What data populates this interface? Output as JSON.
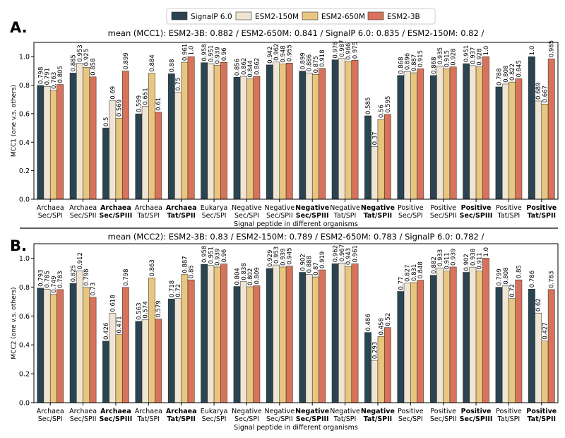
{
  "legend": {
    "entries": [
      "SignalP 6.0",
      "ESM2-150M",
      "ESM2-650M",
      "ESM2-3B"
    ],
    "placement": "top-center"
  },
  "colors": {
    "SignalP 6.0": "#2b4451",
    "ESM2-150M": "#efe5d2",
    "ESM2-650M": "#e9c67f",
    "ESM2-3B": "#d8735b"
  },
  "bold_categories": [
    "Archaea\nSec/SPIII",
    "Archaea\nTat/SPII",
    "Negative\nSec/SPIII",
    "Negative\nTat/SPII",
    "Positive\nSec/SPIII",
    "Positive\nTat/SPII"
  ],
  "chart_data": [
    {
      "panel": "A.",
      "type": "bar",
      "title": "mean (MCC1): ESM2-3B: 0.882 / ESM2-650M: 0.841 / SignalP 6.0: 0.835 / ESM2-150M: 0.82 /",
      "xlabel": "Signal peptide in different organisms",
      "ylabel": "MCC1 (one v.s. others)",
      "ylim": [
        0,
        1.1
      ],
      "yticks": [
        "0.0",
        "0.2",
        "0.4",
        "0.6",
        "0.8",
        "1.0"
      ],
      "grid": false,
      "categories": [
        "Archaea\nSec/SPI",
        "Archaea\nSec/SPII",
        "Archaea\nSec/SPIII",
        "Archaea\nTat/SPI",
        "Archaea\nTat/SPII",
        "Eukarya\nSec/SPI",
        "Negative\nSec/SPI",
        "Negative\nSec/SPII",
        "Negative\nSec/SPIII",
        "Negative\nTat/SPI",
        "Negative\nTat/SPII",
        "Positive\nSec/SPI",
        "Positive\nSec/SPII",
        "Positive\nSec/SPIII",
        "Positive\nTat/SPI",
        "Positive\nTat/SPII"
      ],
      "series": [
        {
          "name": "SignalP 6.0",
          "values": [
            0.798,
            0.885,
            0.5,
            0.599,
            0.88,
            0.958,
            0.856,
            0.942,
            0.899,
            0.978,
            0.585,
            0.868,
            0.868,
            0.951,
            0.788,
            1.0
          ],
          "labels": [
            "0.798",
            "0.885",
            "0.5",
            "0.599",
            "0.88",
            "0.958",
            "0.856",
            "0.942",
            "0.899",
            "0.978",
            "0.585",
            "0.868",
            "0.868",
            "0.951",
            "0.788",
            "1.0"
          ]
        },
        {
          "name": "ESM2-150M",
          "values": [
            0.791,
            0.953,
            0.69,
            0.651,
            0.75,
            0.951,
            0.862,
            0.962,
            0.886,
            0.987,
            0.37,
            0.896,
            0.935,
            0.937,
            0.808,
            0.689
          ],
          "labels": [
            "0.791",
            "0.953",
            "0.69",
            "0.651",
            "0.75",
            "0.951",
            "0.862",
            "0.962",
            "0.886",
            "0.987",
            "0.37",
            "0.896",
            "0.935",
            "0.937",
            "0.808",
            "0.689"
          ]
        },
        {
          "name": "ESM2-650M",
          "values": [
            0.763,
            0.925,
            0.569,
            0.884,
            0.961,
            0.939,
            0.844,
            0.948,
            0.875,
            0.966,
            0.56,
            0.887,
            0.915,
            0.928,
            0.822,
            0.667
          ],
          "labels": [
            "0.763",
            "0.925",
            "0.569",
            "0.884",
            "0.961",
            "0.939",
            "0.844",
            "0.948",
            "0.875",
            "0.966",
            "0.56",
            "0.887",
            "0.915",
            "0.928",
            "0.822",
            "0.667"
          ]
        },
        {
          "name": "ESM2-3B",
          "values": [
            0.805,
            0.858,
            0.899,
            0.61,
            1.0,
            0.96,
            0.862,
            0.955,
            0.918,
            0.975,
            0.595,
            0.915,
            0.928,
            1.0,
            0.845,
            0.985
          ],
          "labels": [
            "0.805",
            "0.858",
            "0.899",
            "0.61",
            "1.0",
            "0.96",
            "0.862",
            "0.955",
            "0.918",
            "0.975",
            "0.595",
            "0.915",
            "0.928",
            "1.0",
            "0.845",
            "0.985"
          ]
        }
      ]
    },
    {
      "panel": "B.",
      "type": "bar",
      "title": "mean (MCC2):  ESM2-3B: 0.83 / ESM2-150M: 0.789 / ESM2-650M: 0.783 / SignalP 6.0: 0.782 /",
      "xlabel": "Signal peptide in different organisms",
      "ylabel": "MCC2 (one v.s. others)",
      "ylim": [
        0,
        1.1
      ],
      "yticks": [
        "0.0",
        "0.2",
        "0.4",
        "0.6",
        "0.8",
        "1.0"
      ],
      "grid": false,
      "categories": [
        "Archaea\nSec/SPI",
        "Archaea\nSec/SPII",
        "Archaea\nSec/SPIII",
        "Archaea\nTat/SPI",
        "Archaea\nTat/SPII",
        "Eukarya\nSec/SPI",
        "Negative\nSec/SPI",
        "Negative\nSec/SPII",
        "Negative\nSec/SPIII",
        "Negative\nTat/SPI",
        "Negative\nTat/SPII",
        "Positive\nSec/SPI",
        "Positive\nSec/SPII",
        "Positive\nSec/SPIII",
        "Positive\nTat/SPI",
        "Positive\nTat/SPII"
      ],
      "series": [
        {
          "name": "SignalP 6.0",
          "values": [
            0.793,
            0.825,
            0.426,
            0.563,
            0.718,
            0.958,
            0.804,
            0.929,
            0.902,
            0.962,
            0.486,
            0.77,
            0.882,
            0.902,
            0.799,
            0.786
          ],
          "labels": [
            "0.793",
            "0.825",
            "0.426",
            "0.563",
            "0.718",
            "0.958",
            "0.804",
            "0.929",
            "0.902",
            "0.962",
            "0.486",
            "0.77",
            "0.882",
            "0.902",
            "0.799",
            "0.786"
          ]
        },
        {
          "name": "ESM2-150M",
          "values": [
            0.785,
            0.912,
            0.618,
            0.574,
            0.72,
            0.951,
            0.838,
            0.953,
            0.888,
            0.967,
            0.293,
            0.827,
            0.933,
            0.938,
            0.808,
            0.62
          ],
          "labels": [
            "0.785",
            "0.912",
            "0.618",
            "0.574",
            "0.72",
            "0.951",
            "0.838",
            "0.953",
            "0.888",
            "0.967",
            "0.293",
            "0.827",
            "0.933",
            "0.938",
            "0.808",
            "0.62"
          ]
        },
        {
          "name": "ESM2-650M",
          "values": [
            0.749,
            0.798,
            0.471,
            0.863,
            0.887,
            0.939,
            0.802,
            0.939,
            0.87,
            0.943,
            0.458,
            0.831,
            0.911,
            0.911,
            0.72,
            0.427
          ],
          "labels": [
            "0.749",
            "0.798",
            "0.471",
            "0.863",
            "0.887",
            "0.939",
            "0.802",
            "0.939",
            "0.87",
            "0.943",
            "0.458",
            "0.831",
            "0.911",
            "0.911",
            "0.72",
            "0.427"
          ]
        },
        {
          "name": "ESM2-3B",
          "values": [
            0.783,
            0.73,
            0.798,
            0.579,
            0.85,
            0.96,
            0.809,
            0.945,
            0.919,
            0.961,
            0.52,
            0.848,
            0.939,
            1.0,
            0.85,
            0.783
          ],
          "labels": [
            "0.783",
            "0.73",
            "0.798",
            "0.579",
            "0.85",
            "0.96",
            "0.809",
            "0.945",
            "0.919",
            "0.961",
            "0.52",
            "0.848",
            "0.939",
            "1.0",
            "0.85",
            "0.783"
          ]
        }
      ]
    }
  ]
}
